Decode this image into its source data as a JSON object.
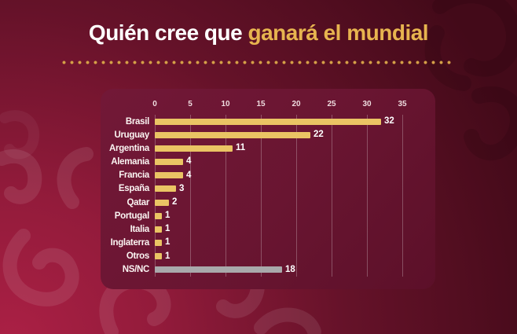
{
  "header": {
    "title_white": "Quién cree que",
    "title_gold": "ganará el mundial"
  },
  "colors": {
    "background_dark": "#430a19",
    "background_bright": "#ab2045",
    "panel": "#691531",
    "title_accent_gold": "#e7b44f",
    "divider_dot_gold": "#d5a047",
    "bar_gold": "#eac464",
    "bar_gray": "#a9a9ab",
    "label_white": "#ffffff",
    "gridline": "rgba(255,255,255,0.26)"
  },
  "chart_data": {
    "type": "bar",
    "orientation": "horizontal",
    "title": "Quién cree que ganará el mundial",
    "categories": [
      "Brasil",
      "Uruguay",
      "Argentina",
      "Alemania",
      "Francia",
      "España",
      "Qatar",
      "Portugal",
      "Italia",
      "Inglaterra",
      "Otros",
      "NS/NC"
    ],
    "values": [
      32,
      22,
      11,
      4,
      4,
      3,
      2,
      1,
      1,
      1,
      1,
      18
    ],
    "gray_categories": [
      "NS/NC"
    ],
    "x_ticks": [
      0,
      5,
      10,
      15,
      20,
      25,
      30,
      35
    ],
    "xlim": [
      0,
      35
    ],
    "xlabel": "",
    "ylabel": "",
    "grid": true,
    "legend": false,
    "value_labels": true
  }
}
